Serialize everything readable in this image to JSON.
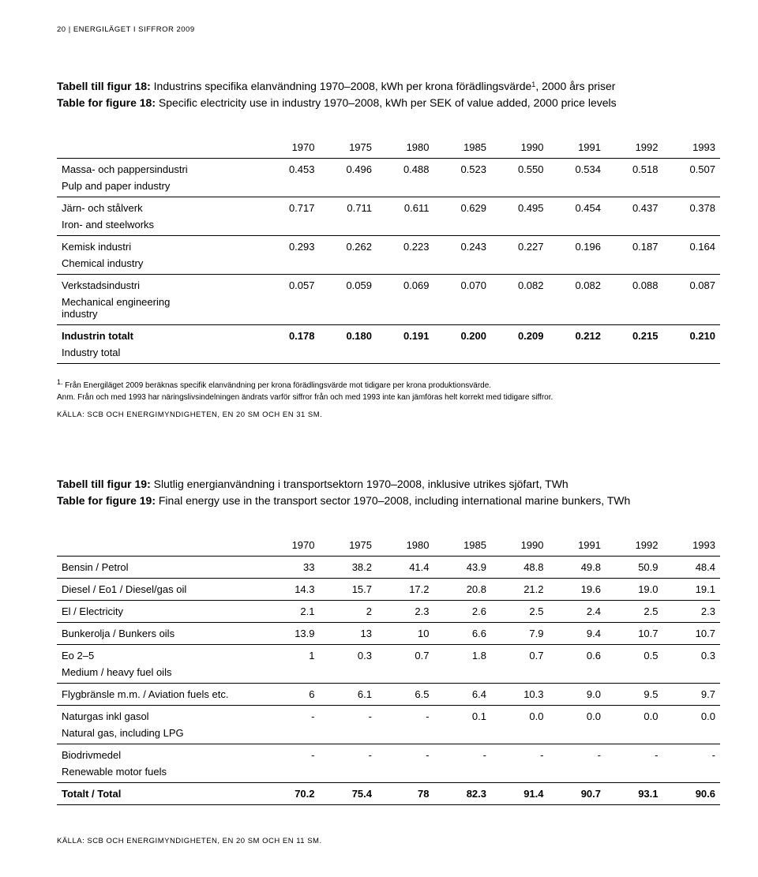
{
  "header": "20 | ENERGILÄGET I SIFFROR 2009",
  "table18": {
    "title_bold": "Tabell till figur 18:",
    "title_rest": " Industrins specifika elanvändning 1970–2008, kWh per krona förädlingsvärde",
    "title_sup": "1",
    "title_line2": ", 2000 års priser",
    "subtitle_bold": "Table for figure 18:",
    "subtitle_rest": " Specific electricity use in industry 1970–2008, kWh per SEK of value added, 2000 price levels",
    "years": [
      "1970",
      "1975",
      "1980",
      "1985",
      "1990",
      "1991",
      "1992",
      "1993"
    ],
    "rows": [
      {
        "main": "Massa- och pappersindustri",
        "sub": "Pulp and paper industry",
        "vals": [
          "0.453",
          "0.496",
          "0.488",
          "0.523",
          "0.550",
          "0.534",
          "0.518",
          "0.507"
        ]
      },
      {
        "main": "Järn- och stålverk",
        "sub": "Iron- and steelworks",
        "vals": [
          "0.717",
          "0.711",
          "0.611",
          "0.629",
          "0.495",
          "0.454",
          "0.437",
          "0.378"
        ]
      },
      {
        "main": "Kemisk industri",
        "sub": "Chemical industry",
        "vals": [
          "0.293",
          "0.262",
          "0.223",
          "0.243",
          "0.227",
          "0.196",
          "0.187",
          "0.164"
        ]
      },
      {
        "main": "Verkstadsindustri",
        "sub": "Mechanical engineering\nindustry",
        "vals": [
          "0.057",
          "0.059",
          "0.069",
          "0.070",
          "0.082",
          "0.082",
          "0.088",
          "0.087"
        ]
      },
      {
        "main": "Industrin totalt",
        "sub": "Industry total",
        "bold": true,
        "vals": [
          "0.178",
          "0.180",
          "0.191",
          "0.200",
          "0.209",
          "0.212",
          "0.215",
          "0.210"
        ]
      }
    ],
    "foot1_sup": "1.",
    "foot1": " Från Energiläget 2009 beräknas specifik elanvändning per krona förädlingsvärde mot tidigare per krona produktionsvärde.",
    "foot2": "Anm. Från och med 1993 har näringslivsindelningen ändrats varför siffror från och med 1993 inte kan jämföras helt korrekt med tidigare siffror.",
    "source": "KÄLLA: SCB OCH ENERGIMYNDIGHETEN, EN 20 SM OCH EN 31 SM."
  },
  "table19": {
    "title_bold": "Tabell till figur 19:",
    "title_rest": " Slutlig energianvändning i transportsektorn 1970–2008, inklusive utrikes sjöfart, TWh",
    "subtitle_bold": "Table for figure 19:",
    "subtitle_rest": " Final energy use in the transport sector 1970–2008, including international marine bunkers, TWh",
    "years": [
      "1970",
      "1975",
      "1980",
      "1985",
      "1990",
      "1991",
      "1992",
      "1993"
    ],
    "rows": [
      {
        "main": "Bensin / Petrol",
        "sub": null,
        "vals": [
          "33",
          "38.2",
          "41.4",
          "43.9",
          "48.8",
          "49.8",
          "50.9",
          "48.4"
        ]
      },
      {
        "main": "Diesel / Eo1 / Diesel/gas oil",
        "sub": null,
        "vals": [
          "14.3",
          "15.7",
          "17.2",
          "20.8",
          "21.2",
          "19.6",
          "19.0",
          "19.1"
        ]
      },
      {
        "main": "El / Electricity",
        "sub": null,
        "vals": [
          "2.1",
          "2",
          "2.3",
          "2.6",
          "2.5",
          "2.4",
          "2.5",
          "2.3"
        ]
      },
      {
        "main": "Bunkerolja / Bunkers oils",
        "sub": null,
        "vals": [
          "13.9",
          "13",
          "10",
          "6.6",
          "7.9",
          "9.4",
          "10.7",
          "10.7"
        ]
      },
      {
        "main": "Eo 2–5",
        "sub": "Medium / heavy fuel oils",
        "vals": [
          "1",
          "0.3",
          "0.7",
          "1.8",
          "0.7",
          "0.6",
          "0.5",
          "0.3"
        ]
      },
      {
        "main": "Flygbränsle m.m. / Aviation fuels etc.",
        "sub": null,
        "vals": [
          "6",
          "6.1",
          "6.5",
          "6.4",
          "10.3",
          "9.0",
          "9.5",
          "9.7"
        ]
      },
      {
        "main": "Naturgas inkl gasol",
        "sub": "Natural gas, including LPG",
        "vals": [
          "-",
          "-",
          "-",
          "0.1",
          "0.0",
          "0.0",
          "0.0",
          "0.0"
        ]
      },
      {
        "main": "Biodrivmedel",
        "sub": "Renewable motor fuels",
        "vals": [
          "-",
          "-",
          "-",
          "-",
          "-",
          "-",
          "-",
          "-"
        ]
      },
      {
        "main": "Totalt / Total",
        "sub": null,
        "bold": true,
        "vals": [
          "70.2",
          "75.4",
          "78",
          "82.3",
          "91.4",
          "90.7",
          "93.1",
          "90.6"
        ]
      }
    ],
    "source": "KÄLLA: SCB OCH ENERGIMYNDIGHETEN, EN 20 SM OCH EN 11 SM."
  }
}
